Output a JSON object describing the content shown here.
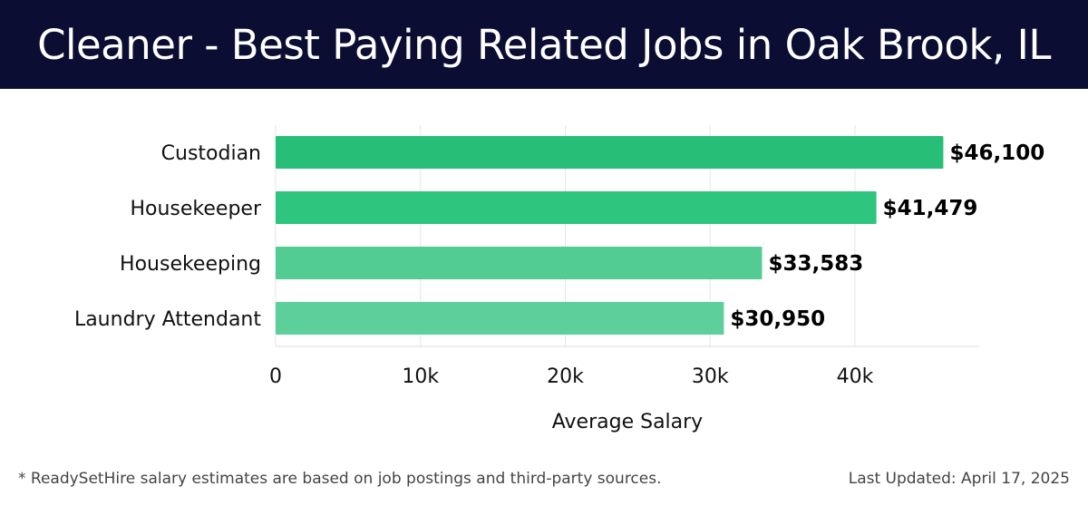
{
  "header": {
    "title": "Cleaner - Best Paying Related Jobs in Oak Brook, IL"
  },
  "chart_data": {
    "type": "bar",
    "orientation": "horizontal",
    "categories": [
      "Custodian",
      "Housekeeper",
      "Housekeeping",
      "Laundry Attendant"
    ],
    "values": [
      46100,
      41479,
      33583,
      30950
    ],
    "value_labels": [
      "$46,100",
      "$41,479",
      "$33,583",
      "$30,950"
    ],
    "xlabel": "Average Salary",
    "ylabel": "",
    "xlim": [
      0,
      48000
    ],
    "x_ticks": [
      0,
      10000,
      20000,
      30000,
      40000
    ],
    "x_tick_labels": [
      "0",
      "10k",
      "20k",
      "30k",
      "40k"
    ],
    "grid": true,
    "bar_colors": [
      "#27bf78",
      "#2ec57f",
      "#52cc93",
      "#5ccf9a"
    ]
  },
  "footer": {
    "footnote": "* ReadySetHire salary estimates are based on job postings and third-party sources.",
    "updated": "Last Updated: April 17, 2025"
  }
}
